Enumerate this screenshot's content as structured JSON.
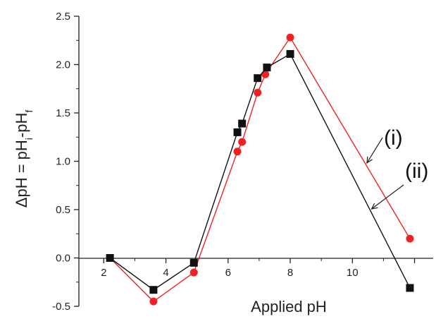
{
  "chart_data": {
    "type": "line",
    "title": "",
    "xlabel": "Applied pH",
    "ylabel_main": "ΔpH = pH",
    "ylabel_i": "i",
    "ylabel_sep": "-pH",
    "ylabel_f": "f",
    "xlim": [
      1.2,
      12.6
    ],
    "ylim": [
      -0.5,
      2.5
    ],
    "x_ticks": [
      2,
      4,
      6,
      8,
      10,
      12
    ],
    "x_tick_labels": [
      "2",
      "4",
      "6",
      "8",
      "10",
      ""
    ],
    "y_ticks": [
      -0.5,
      0.0,
      0.5,
      1.0,
      1.5,
      2.0,
      2.5
    ],
    "y_tick_labels": [
      "-0.5",
      "0.0",
      "0.5",
      "1.0",
      "1.5",
      "2.0",
      "2.5"
    ],
    "grid": false,
    "series": [
      {
        "name": "(i)",
        "color": "#ee2222",
        "marker": "circle",
        "x": [
          2.2,
          3.6,
          4.9,
          6.3,
          6.45,
          6.95,
          7.2,
          8.0,
          11.85
        ],
        "y": [
          0.0,
          -0.45,
          -0.15,
          1.1,
          1.2,
          1.71,
          1.9,
          2.28,
          0.2
        ]
      },
      {
        "name": "(ii)",
        "color": "#111111",
        "marker": "square",
        "x": [
          2.2,
          3.6,
          4.9,
          6.3,
          6.45,
          6.95,
          7.25,
          8.0,
          11.85
        ],
        "y": [
          0.0,
          -0.33,
          -0.05,
          1.3,
          1.39,
          1.86,
          1.97,
          2.11,
          -0.31
        ]
      }
    ],
    "annotations": [
      {
        "text": "(i)",
        "series": "(i)"
      },
      {
        "text": "(ii)",
        "series": "(ii)"
      }
    ]
  }
}
